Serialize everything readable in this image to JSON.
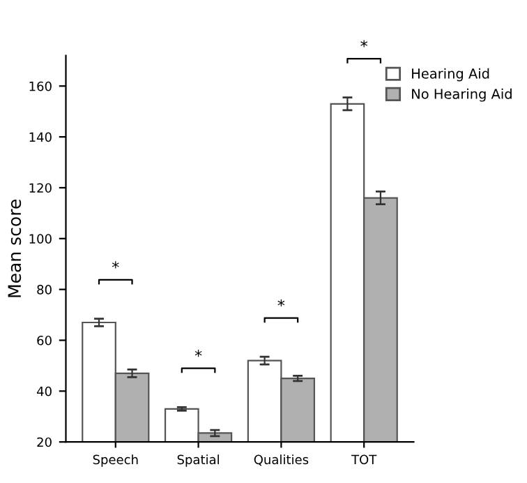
{
  "chart_data": {
    "type": "bar",
    "ylabel": "Mean score",
    "categories": [
      "Speech",
      "Spatial",
      "Qualities",
      "TOT"
    ],
    "series": [
      {
        "name": "Hearing Aid",
        "color": "#ffffff",
        "values": [
          67,
          33,
          52,
          153
        ],
        "errors": [
          1.5,
          0.7,
          1.5,
          2.5
        ]
      },
      {
        "name": "No Hearing Aid",
        "color": "#b0b0b0",
        "values": [
          47,
          23.5,
          45,
          116
        ],
        "errors": [
          1.5,
          1.2,
          1,
          2.5
        ]
      }
    ],
    "ylim": [
      20,
      172
    ],
    "yticks": [
      20,
      40,
      60,
      80,
      100,
      120,
      140,
      160
    ],
    "annotations": [
      "*",
      "*",
      "*",
      "*"
    ],
    "grid": false,
    "legend": "top right"
  }
}
